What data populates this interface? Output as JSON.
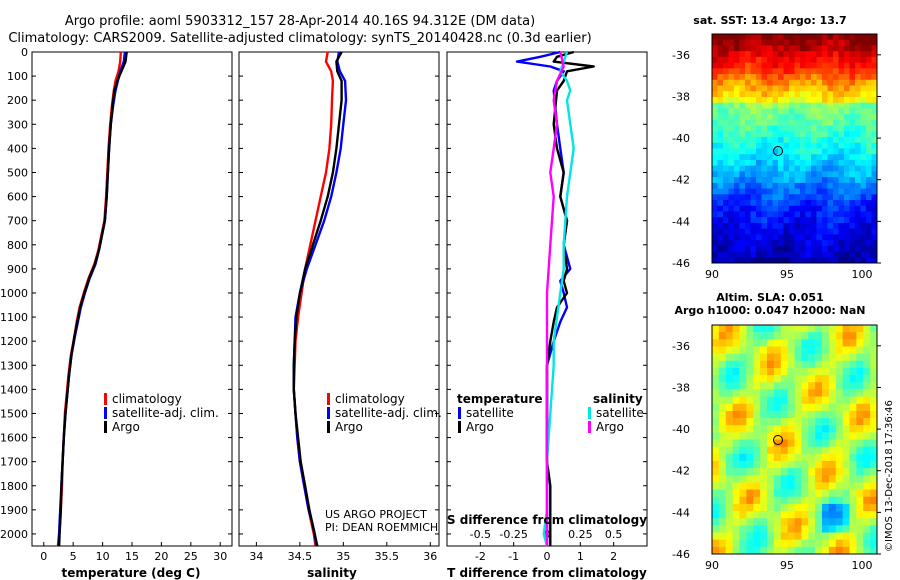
{
  "header": {
    "line1": "Argo profile: aoml 5903312_157 28-Apr-2014 40.16S 94.312E (DM data)",
    "line2": "Climatology: CARS2009. Satellite-adjusted climatology: synTS_20140428.nc (0.3d earlier)"
  },
  "colors": {
    "climatology": "#ff0000",
    "satellite": "#0000ff",
    "argo": "#000000",
    "sat_s": "#00e5e5",
    "argo_s": "#ff00ff"
  },
  "depth_ticks": [
    "0",
    "100",
    "200",
    "300",
    "400",
    "500",
    "600",
    "700",
    "800",
    "900",
    "1000",
    "1100",
    "1200",
    "1300",
    "1400",
    "1500",
    "1600",
    "1700",
    "1800",
    "1900",
    "2000"
  ],
  "chart_data": [
    {
      "type": "line",
      "id": "temperature",
      "xlabel": "temperature (deg C)",
      "xlim": [
        -2,
        32
      ],
      "ylim": [
        0,
        2050
      ],
      "xticks": [
        "0",
        "5",
        "10",
        "15",
        "20",
        "25",
        "30"
      ],
      "legend": [
        "climatology",
        "satellite-adj. clim.",
        "Argo"
      ],
      "series": [
        {
          "name": "climatology",
          "color": "#ff0000",
          "x": [
            13.1,
            13.0,
            12.7,
            12.2,
            11.9,
            11.6,
            11.3,
            11.0,
            10.8,
            10.6,
            10.3,
            9.8,
            9.3,
            8.6,
            7.6,
            6.8,
            6.1,
            5.6,
            5.2,
            4.6,
            4.2,
            3.9,
            3.6,
            3.4,
            3.2,
            3.1,
            2.9,
            2.8,
            2.6,
            2.4
          ],
          "y": [
            0,
            40,
            80,
            120,
            160,
            220,
            300,
            400,
            500,
            600,
            700,
            760,
            820,
            880,
            940,
            1000,
            1060,
            1120,
            1180,
            1260,
            1340,
            1420,
            1500,
            1600,
            1700,
            1800,
            1900,
            1950,
            2000,
            2050
          ]
        },
        {
          "name": "satellite-adj. clim.",
          "color": "#0000ff",
          "x": [
            13.8,
            13.6,
            13.0,
            12.6,
            12.2,
            11.8,
            11.4,
            11.1,
            10.9,
            10.7,
            10.4,
            9.9,
            9.4,
            8.8,
            7.8,
            7.0,
            6.3,
            5.8,
            5.3,
            4.7,
            4.3,
            4.0,
            3.7,
            3.4,
            3.2,
            3.0,
            2.8,
            2.7,
            2.6,
            2.5
          ],
          "y": [
            0,
            40,
            80,
            120,
            160,
            220,
            300,
            400,
            500,
            600,
            700,
            760,
            820,
            880,
            940,
            1000,
            1060,
            1120,
            1180,
            1260,
            1340,
            1420,
            1500,
            1600,
            1700,
            1800,
            1900,
            1950,
            2000,
            2050
          ]
        },
        {
          "name": "Argo",
          "color": "#000000",
          "x": [
            14.1,
            13.9,
            13.2,
            12.5,
            12.0,
            11.7,
            11.4,
            11.1,
            10.9,
            10.7,
            10.4,
            9.9,
            9.4,
            8.7,
            7.7,
            6.9,
            6.2,
            5.7,
            5.2,
            4.7,
            4.3,
            4.0,
            3.7,
            3.4,
            3.2,
            3.0,
            2.9,
            2.8,
            2.7,
            2.6
          ],
          "y": [
            0,
            40,
            80,
            120,
            160,
            220,
            300,
            400,
            500,
            600,
            700,
            760,
            820,
            880,
            940,
            1000,
            1060,
            1120,
            1180,
            1260,
            1340,
            1420,
            1500,
            1600,
            1700,
            1800,
            1900,
            1950,
            2000,
            2050
          ]
        }
      ]
    },
    {
      "type": "line",
      "id": "salinity",
      "xlabel": "salinity",
      "xlim": [
        33.8,
        36.1
      ],
      "ylim": [
        0,
        2050
      ],
      "xticks": [
        "34",
        "34.5",
        "35",
        "35.5",
        "36"
      ],
      "xtick_values": [
        34,
        34.5,
        35,
        35.5,
        36
      ],
      "legend": [
        "climatology",
        "satellite-adj. clim.",
        "Argo"
      ],
      "credit": [
        "US ARGO PROJECT",
        "PI: DEAN ROEMMICH"
      ],
      "series": [
        {
          "name": "climatology",
          "color": "#ff0000",
          "x": [
            34.82,
            34.8,
            34.86,
            34.88,
            34.87,
            34.86,
            34.84,
            34.8,
            34.74,
            34.68,
            34.62,
            34.56,
            34.52,
            34.48,
            34.45,
            34.44,
            34.43,
            34.45,
            34.47,
            34.5,
            34.55,
            34.6,
            34.63,
            34.66,
            34.68
          ],
          "y": [
            0,
            40,
            80,
            120,
            200,
            300,
            400,
            500,
            600,
            700,
            800,
            900,
            1000,
            1100,
            1200,
            1300,
            1400,
            1500,
            1600,
            1700,
            1800,
            1900,
            1950,
            2000,
            2050
          ]
        },
        {
          "name": "satellite-adj. clim.",
          "color": "#0000ff",
          "x": [
            34.95,
            34.93,
            34.96,
            35.02,
            35.03,
            35.0,
            34.97,
            34.92,
            34.86,
            34.78,
            34.68,
            34.58,
            34.5,
            34.45,
            34.44,
            34.43,
            34.43,
            34.45,
            34.47,
            34.5,
            34.55,
            34.6,
            34.64,
            34.67,
            34.69
          ],
          "y": [
            0,
            40,
            80,
            120,
            200,
            300,
            400,
            500,
            600,
            700,
            800,
            900,
            1000,
            1100,
            1200,
            1300,
            1400,
            1500,
            1600,
            1700,
            1800,
            1900,
            1950,
            2000,
            2050
          ]
        },
        {
          "name": "Argo",
          "color": "#000000",
          "x": [
            34.98,
            34.92,
            34.93,
            34.98,
            34.98,
            34.95,
            34.92,
            34.88,
            34.82,
            34.74,
            34.65,
            34.56,
            34.5,
            34.46,
            34.44,
            34.43,
            34.43,
            34.45,
            34.48,
            34.51,
            34.56,
            34.61,
            34.64,
            34.67,
            34.7
          ],
          "y": [
            0,
            40,
            80,
            120,
            200,
            300,
            400,
            500,
            600,
            700,
            800,
            900,
            1000,
            1100,
            1200,
            1300,
            1400,
            1500,
            1600,
            1700,
            1800,
            1900,
            1950,
            2000,
            2050
          ]
        }
      ]
    },
    {
      "type": "line",
      "id": "difference",
      "xlabel": "T difference from climatology",
      "xlabel_top": "S difference from climatology",
      "xlim": [
        -3,
        3
      ],
      "ylim": [
        0,
        2050
      ],
      "xticks": [
        "-2",
        "-1",
        "0",
        "1",
        "2"
      ],
      "xtick_values": [
        -2,
        -1,
        0,
        1,
        2
      ],
      "sticks": [
        "-0.5",
        "-0.25",
        "0",
        "0.25",
        "0.5"
      ],
      "stick_values": [
        -2,
        -1,
        0,
        1,
        2
      ],
      "legend_left_title": "temperature",
      "legend_right_title": "salinity",
      "legend": [
        "satellite",
        "Argo",
        "satellite",
        "Argo"
      ],
      "series": [
        {
          "name": "T satellite",
          "color": "#0000ff",
          "x": [
            0.4,
            -0.2,
            -0.9,
            0.1,
            0.5,
            0.3,
            0.2,
            0.3,
            0.4,
            0.5,
            0.4,
            0.6,
            0.5,
            0.7,
            0.4,
            0.5,
            0.6,
            0.4,
            0.2,
            0.0,
            0.0,
            0.0,
            0.0,
            0.0,
            0.0,
            0.0
          ],
          "y": [
            0,
            20,
            40,
            60,
            80,
            120,
            160,
            300,
            400,
            500,
            600,
            700,
            800,
            900,
            950,
            1000,
            1060,
            1120,
            1200,
            1300,
            1500,
            1700,
            1800,
            1900,
            2000,
            2050
          ]
        },
        {
          "name": "T Argo",
          "color": "#000000",
          "x": [
            0.8,
            0.3,
            0.2,
            1.4,
            0.6,
            0.5,
            0.3,
            0.2,
            0.3,
            0.5,
            0.4,
            0.6,
            0.5,
            0.6,
            0.5,
            0.6,
            0.3,
            0.2,
            0.1,
            0.0,
            0.0,
            0.0,
            0.1,
            0.1,
            0.1,
            0.1
          ],
          "y": [
            0,
            20,
            40,
            60,
            80,
            120,
            160,
            300,
            400,
            500,
            600,
            700,
            800,
            900,
            950,
            1000,
            1060,
            1120,
            1200,
            1300,
            1500,
            1700,
            1800,
            1900,
            2000,
            2050
          ]
        },
        {
          "name": "S satellite",
          "color": "#00e5e5",
          "x": [
            0.6,
            0.5,
            0.4,
            0.6,
            0.7,
            0.6,
            0.7,
            0.8,
            0.6,
            0.5,
            0.5,
            0.4,
            0.3,
            0.2,
            0.2,
            0.1,
            0.0,
            0.0,
            0.0,
            -0.1,
            0.0
          ],
          "y": [
            0,
            40,
            80,
            120,
            160,
            200,
            300,
            400,
            600,
            800,
            900,
            1000,
            1100,
            1200,
            1300,
            1500,
            1700,
            1800,
            1900,
            2000,
            2050
          ]
        },
        {
          "name": "S Argo",
          "color": "#ff00ff",
          "x": [
            0.4,
            0.5,
            0.3,
            0.2,
            0.3,
            0.2,
            0.1,
            0.2,
            0.1,
            0.0,
            0.0,
            0.0,
            0.0,
            0.0,
            0.0,
            0.0,
            0.0,
            0.0
          ],
          "y": [
            0,
            60,
            120,
            200,
            300,
            400,
            500,
            600,
            800,
            1000,
            1200,
            1400,
            1600,
            1700,
            1800,
            1900,
            2000,
            2050
          ]
        }
      ]
    }
  ],
  "maps": {
    "sst": {
      "title": "sat. SST: 13.4 Argo: 13.7",
      "xticks": [
        "90",
        "95",
        "100"
      ],
      "yticks": [
        "-36",
        "-38",
        "-40",
        "-42",
        "-44",
        "-46"
      ]
    },
    "sla": {
      "title1": "Altim. SLA: 0.051",
      "title2": "Argo h1000: 0.047 h2000: NaN",
      "xticks": [
        "90",
        "95",
        "100"
      ],
      "yticks": [
        "-36",
        "-38",
        "-40",
        "-42",
        "-44",
        "-46"
      ]
    },
    "profile_marker": {
      "lon": 94.31,
      "lat": -40.16
    }
  },
  "stamp": "©IMOS 13-Dec-2018 17:36:46"
}
